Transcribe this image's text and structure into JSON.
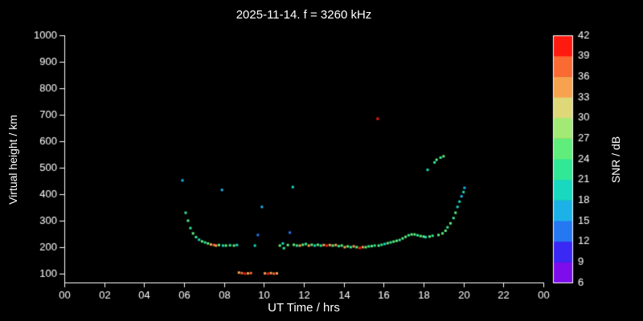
{
  "chart_data": {
    "type": "scatter",
    "title": "2025-11-14. f = 3260 kHz",
    "xlabel": "UT Time / hrs",
    "ylabel": "Virtual height / km",
    "colorbar_label": "SNR / dB",
    "background": "#000000",
    "axis_color": "#ffffff",
    "grid": false,
    "legend": "colorbar-right",
    "xlim": [
      0,
      24
    ],
    "ylim": [
      100,
      1000
    ],
    "x_tick_values": [
      0,
      2,
      4,
      6,
      8,
      10,
      12,
      14,
      16,
      18,
      20,
      22,
      24
    ],
    "x_tick_labels": [
      "00",
      "02",
      "04",
      "06",
      "08",
      "10",
      "12",
      "14",
      "16",
      "18",
      "20",
      "22",
      "00"
    ],
    "y_ticks": [
      100,
      200,
      300,
      400,
      500,
      600,
      700,
      800,
      900,
      1000
    ],
    "colorbar": {
      "min": 6,
      "max": 42,
      "ticks": [
        6,
        9,
        12,
        15,
        18,
        21,
        24,
        27,
        30,
        33,
        36,
        39,
        42
      ],
      "bands": [
        {
          "from": 6,
          "to": 9,
          "color": "#7d0deb"
        },
        {
          "from": 9,
          "to": 12,
          "color": "#3a28f5"
        },
        {
          "from": 12,
          "to": 15,
          "color": "#2677f2"
        },
        {
          "from": 15,
          "to": 18,
          "color": "#1cb2e8"
        },
        {
          "from": 18,
          "to": 21,
          "color": "#18d8c0"
        },
        {
          "from": 21,
          "to": 24,
          "color": "#30e896"
        },
        {
          "from": 24,
          "to": 27,
          "color": "#5fee7c"
        },
        {
          "from": 27,
          "to": 30,
          "color": "#a2ea74"
        },
        {
          "from": 30,
          "to": 33,
          "color": "#ded878"
        },
        {
          "from": 33,
          "to": 36,
          "color": "#f7a24e"
        },
        {
          "from": 36,
          "to": 39,
          "color": "#fa6a33"
        },
        {
          "from": 39,
          "to": 42,
          "color": "#ff1a10"
        }
      ]
    },
    "point_format": [
      "ut_hours",
      "virtual_height_km",
      "snr_db"
    ],
    "points": [
      [
        5.92,
        452,
        15
      ],
      [
        6.08,
        330,
        22
      ],
      [
        6.2,
        300,
        24
      ],
      [
        6.32,
        272,
        22
      ],
      [
        6.45,
        252,
        24
      ],
      [
        6.6,
        238,
        22
      ],
      [
        6.75,
        228,
        18
      ],
      [
        6.9,
        222,
        24
      ],
      [
        7.05,
        218,
        22
      ],
      [
        7.2,
        214,
        24
      ],
      [
        7.35,
        210,
        33
      ],
      [
        7.5,
        208,
        36
      ],
      [
        7.6,
        206,
        33
      ],
      [
        7.75,
        208,
        24
      ],
      [
        7.9,
        416,
        15
      ],
      [
        7.95,
        206,
        18
      ],
      [
        8.1,
        206,
        24
      ],
      [
        8.3,
        207,
        22
      ],
      [
        8.5,
        206,
        24
      ],
      [
        8.65,
        208,
        18
      ],
      [
        8.75,
        104,
        33
      ],
      [
        8.9,
        102,
        36
      ],
      [
        9.05,
        100,
        39
      ],
      [
        9.2,
        101,
        33
      ],
      [
        9.35,
        102,
        36
      ],
      [
        9.55,
        206,
        18
      ],
      [
        9.7,
        246,
        12
      ],
      [
        9.9,
        352,
        15
      ],
      [
        10.05,
        101,
        33
      ],
      [
        10.2,
        100,
        39
      ],
      [
        10.35,
        102,
        33
      ],
      [
        10.5,
        100,
        36
      ],
      [
        10.65,
        101,
        33
      ],
      [
        10.8,
        206,
        24
      ],
      [
        10.95,
        214,
        18
      ],
      [
        11.0,
        196,
        22
      ],
      [
        11.2,
        208,
        24
      ],
      [
        11.3,
        255,
        12
      ],
      [
        11.45,
        427,
        18
      ],
      [
        11.5,
        209,
        24
      ],
      [
        11.65,
        206,
        22
      ],
      [
        11.8,
        206,
        33
      ],
      [
        11.95,
        209,
        24
      ],
      [
        12.1,
        212,
        22
      ],
      [
        12.25,
        206,
        33
      ],
      [
        12.4,
        209,
        24
      ],
      [
        12.55,
        206,
        18
      ],
      [
        12.7,
        209,
        24
      ],
      [
        12.85,
        206,
        22
      ],
      [
        13.0,
        208,
        33
      ],
      [
        13.15,
        206,
        39
      ],
      [
        13.3,
        208,
        33
      ],
      [
        13.45,
        206,
        24
      ],
      [
        13.6,
        208,
        33
      ],
      [
        13.75,
        204,
        22
      ],
      [
        13.9,
        206,
        24
      ],
      [
        14.05,
        200,
        33
      ],
      [
        14.2,
        203,
        24
      ],
      [
        14.35,
        200,
        22
      ],
      [
        14.5,
        203,
        33
      ],
      [
        14.65,
        200,
        24
      ],
      [
        14.8,
        197,
        39
      ],
      [
        14.95,
        200,
        33
      ],
      [
        15.1,
        200,
        24
      ],
      [
        15.25,
        203,
        22
      ],
      [
        15.4,
        204,
        24
      ],
      [
        15.55,
        206,
        22
      ],
      [
        15.7,
        685,
        39
      ],
      [
        15.75,
        206,
        24
      ],
      [
        15.9,
        209,
        22
      ],
      [
        16.05,
        212,
        18
      ],
      [
        16.2,
        215,
        24
      ],
      [
        16.35,
        218,
        22
      ],
      [
        16.5,
        221,
        24
      ],
      [
        16.65,
        224,
        24
      ],
      [
        16.8,
        227,
        22
      ],
      [
        16.95,
        233,
        24
      ],
      [
        17.1,
        239,
        24
      ],
      [
        17.25,
        245,
        22
      ],
      [
        17.4,
        248,
        24
      ],
      [
        17.55,
        248,
        24
      ],
      [
        17.7,
        245,
        22
      ],
      [
        17.85,
        242,
        24
      ],
      [
        18.0,
        240,
        24
      ],
      [
        18.1,
        238,
        18
      ],
      [
        18.2,
        492,
        18
      ],
      [
        18.3,
        240,
        24
      ],
      [
        18.45,
        243,
        22
      ],
      [
        18.55,
        520,
        22
      ],
      [
        18.65,
        530,
        24
      ],
      [
        18.75,
        246,
        24
      ],
      [
        18.85,
        538,
        22
      ],
      [
        18.95,
        252,
        24
      ],
      [
        19.0,
        543,
        24
      ],
      [
        19.1,
        262,
        24
      ],
      [
        19.2,
        275,
        22
      ],
      [
        19.35,
        290,
        24
      ],
      [
        19.5,
        310,
        22
      ],
      [
        19.6,
        330,
        24
      ],
      [
        19.7,
        352,
        18
      ],
      [
        19.8,
        372,
        18
      ],
      [
        19.9,
        392,
        15
      ],
      [
        20.0,
        408,
        18
      ],
      [
        20.05,
        424,
        15
      ]
    ]
  }
}
